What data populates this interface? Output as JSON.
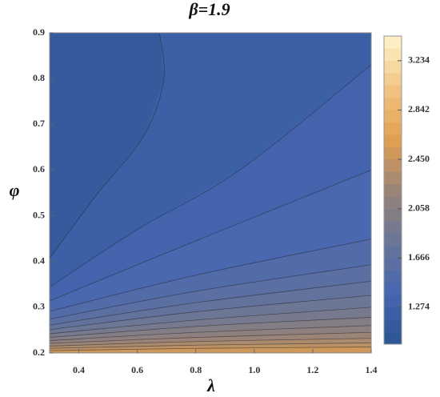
{
  "chart_data": {
    "type": "contour",
    "title": "β=1.9",
    "x_label": "λ",
    "y_label": "φ",
    "xlim": [
      0.3,
      1.4
    ],
    "ylim": [
      0.2,
      0.9
    ],
    "xticks": [
      0.4,
      0.6,
      0.8,
      {
        "value": 1,
        "label": "1.0"
      },
      1.2,
      1.4
    ],
    "yticks": [
      0.2,
      0.3,
      0.4,
      0.5,
      0.6,
      0.7,
      0.8,
      0.9
    ],
    "zlim": [
      0.98,
      3.43
    ],
    "zticks": [
      1.274,
      1.666,
      2.058,
      {
        "value": 2.45,
        "label": "2.450"
      },
      2.842,
      3.234
    ],
    "colormap": [
      "#2b5592",
      "#4767b2",
      "#6a7596",
      "#9a8478",
      "#e2a050",
      "#f2c485",
      "#fdf5cc"
    ],
    "contours": [
      {
        "level": 1.176,
        "x": [
          0.3,
          0.456,
          0.621,
          0.69,
          0.676
        ],
        "y": [
          0.407,
          0.542,
          0.674,
          0.796,
          0.9
        ]
      },
      {
        "level": 1.274,
        "x": [
          0.3,
          0.6,
          0.95,
          1.4
        ],
        "y": [
          0.344,
          0.47,
          0.6,
          0.83
        ]
      },
      {
        "level": 1.372,
        "x": [
          0.3,
          0.8,
          1.4
        ],
        "y": [
          0.314,
          0.445,
          0.6
        ]
      },
      {
        "level": 1.47,
        "x": [
          0.3,
          0.8,
          1.4
        ],
        "y": [
          0.291,
          0.37,
          0.449
        ]
      },
      {
        "level": 1.568,
        "x": [
          0.3,
          0.8,
          1.4
        ],
        "y": [
          0.274,
          0.335,
          0.393
        ]
      },
      {
        "level": 1.666,
        "x": [
          0.3,
          0.8,
          1.4
        ],
        "y": [
          0.261,
          0.31,
          0.357
        ]
      },
      {
        "level": 1.764,
        "x": [
          0.3,
          0.8,
          1.4
        ],
        "y": [
          0.251,
          0.29,
          0.326
        ]
      },
      {
        "level": 1.862,
        "x": [
          0.3,
          0.8,
          1.4
        ],
        "y": [
          0.242,
          0.272,
          0.3
        ]
      },
      {
        "level": 1.96,
        "x": [
          0.3,
          0.8,
          1.4
        ],
        "y": [
          0.234,
          0.258,
          0.278
        ]
      },
      {
        "level": 2.058,
        "x": [
          0.3,
          0.8,
          1.4
        ],
        "y": [
          0.227,
          0.245,
          0.26
        ]
      },
      {
        "level": 2.156,
        "x": [
          0.3,
          0.8,
          1.4
        ],
        "y": [
          0.221,
          0.234,
          0.245
        ]
      },
      {
        "level": 2.254,
        "x": [
          0.3,
          0.8,
          1.4
        ],
        "y": [
          0.215,
          0.225,
          0.232
        ]
      },
      {
        "level": 2.352,
        "x": [
          0.3,
          0.8,
          1.4
        ],
        "y": [
          0.21,
          0.217,
          0.222
        ]
      },
      {
        "level": 2.45,
        "x": [
          0.3,
          0.8,
          1.4
        ],
        "y": [
          0.205,
          0.21,
          0.213
        ]
      }
    ]
  }
}
